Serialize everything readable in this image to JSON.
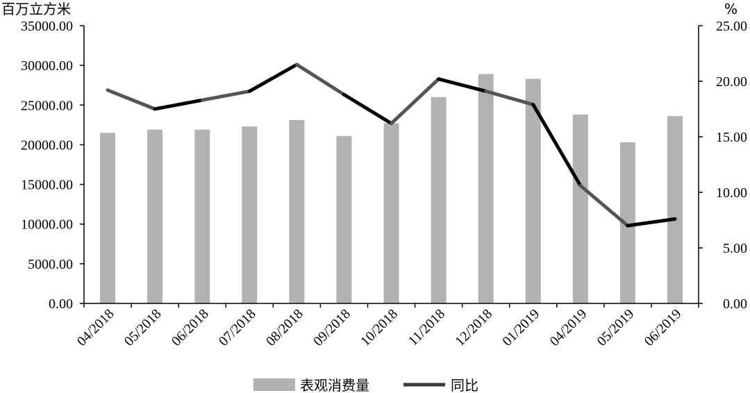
{
  "chart_data": {
    "type": "bar",
    "categories": [
      "04/2018",
      "05/2018",
      "06/2018",
      "07/2018",
      "08/2018",
      "09/2018",
      "10/2018",
      "11/2018",
      "12/2018",
      "01/2019",
      "04/2019",
      "05/2019",
      "06/2019"
    ],
    "series": [
      {
        "name": "表观消费量",
        "type": "bar",
        "axis": "left",
        "color": "#b2b2b2",
        "values": [
          21500,
          21900,
          21900,
          22300,
          23100,
          21100,
          22700,
          26000,
          28900,
          28300,
          23800,
          20300,
          23600
        ]
      },
      {
        "name": "同比",
        "type": "line",
        "axis": "right",
        "color": "#000000",
        "values": [
          19.2,
          17.5,
          18.3,
          19.1,
          21.5,
          18.8,
          16.2,
          20.2,
          19.1,
          17.9,
          10.6,
          7.0,
          7.6
        ]
      }
    ],
    "y_left": {
      "unit": "百万立方米",
      "range": [
        0,
        35000
      ],
      "ticks": [
        "35000.00",
        "30000.00",
        "25000.00",
        "20000.00",
        "15000.00",
        "10000.00",
        "5000.00",
        "0.00"
      ]
    },
    "y_right": {
      "unit": "%",
      "range": [
        0,
        25
      ],
      "ticks": [
        "25.00",
        "20.00",
        "15.00",
        "10.00",
        "5.00",
        "0.00"
      ]
    },
    "grid": false,
    "legend_position": "bottom"
  }
}
